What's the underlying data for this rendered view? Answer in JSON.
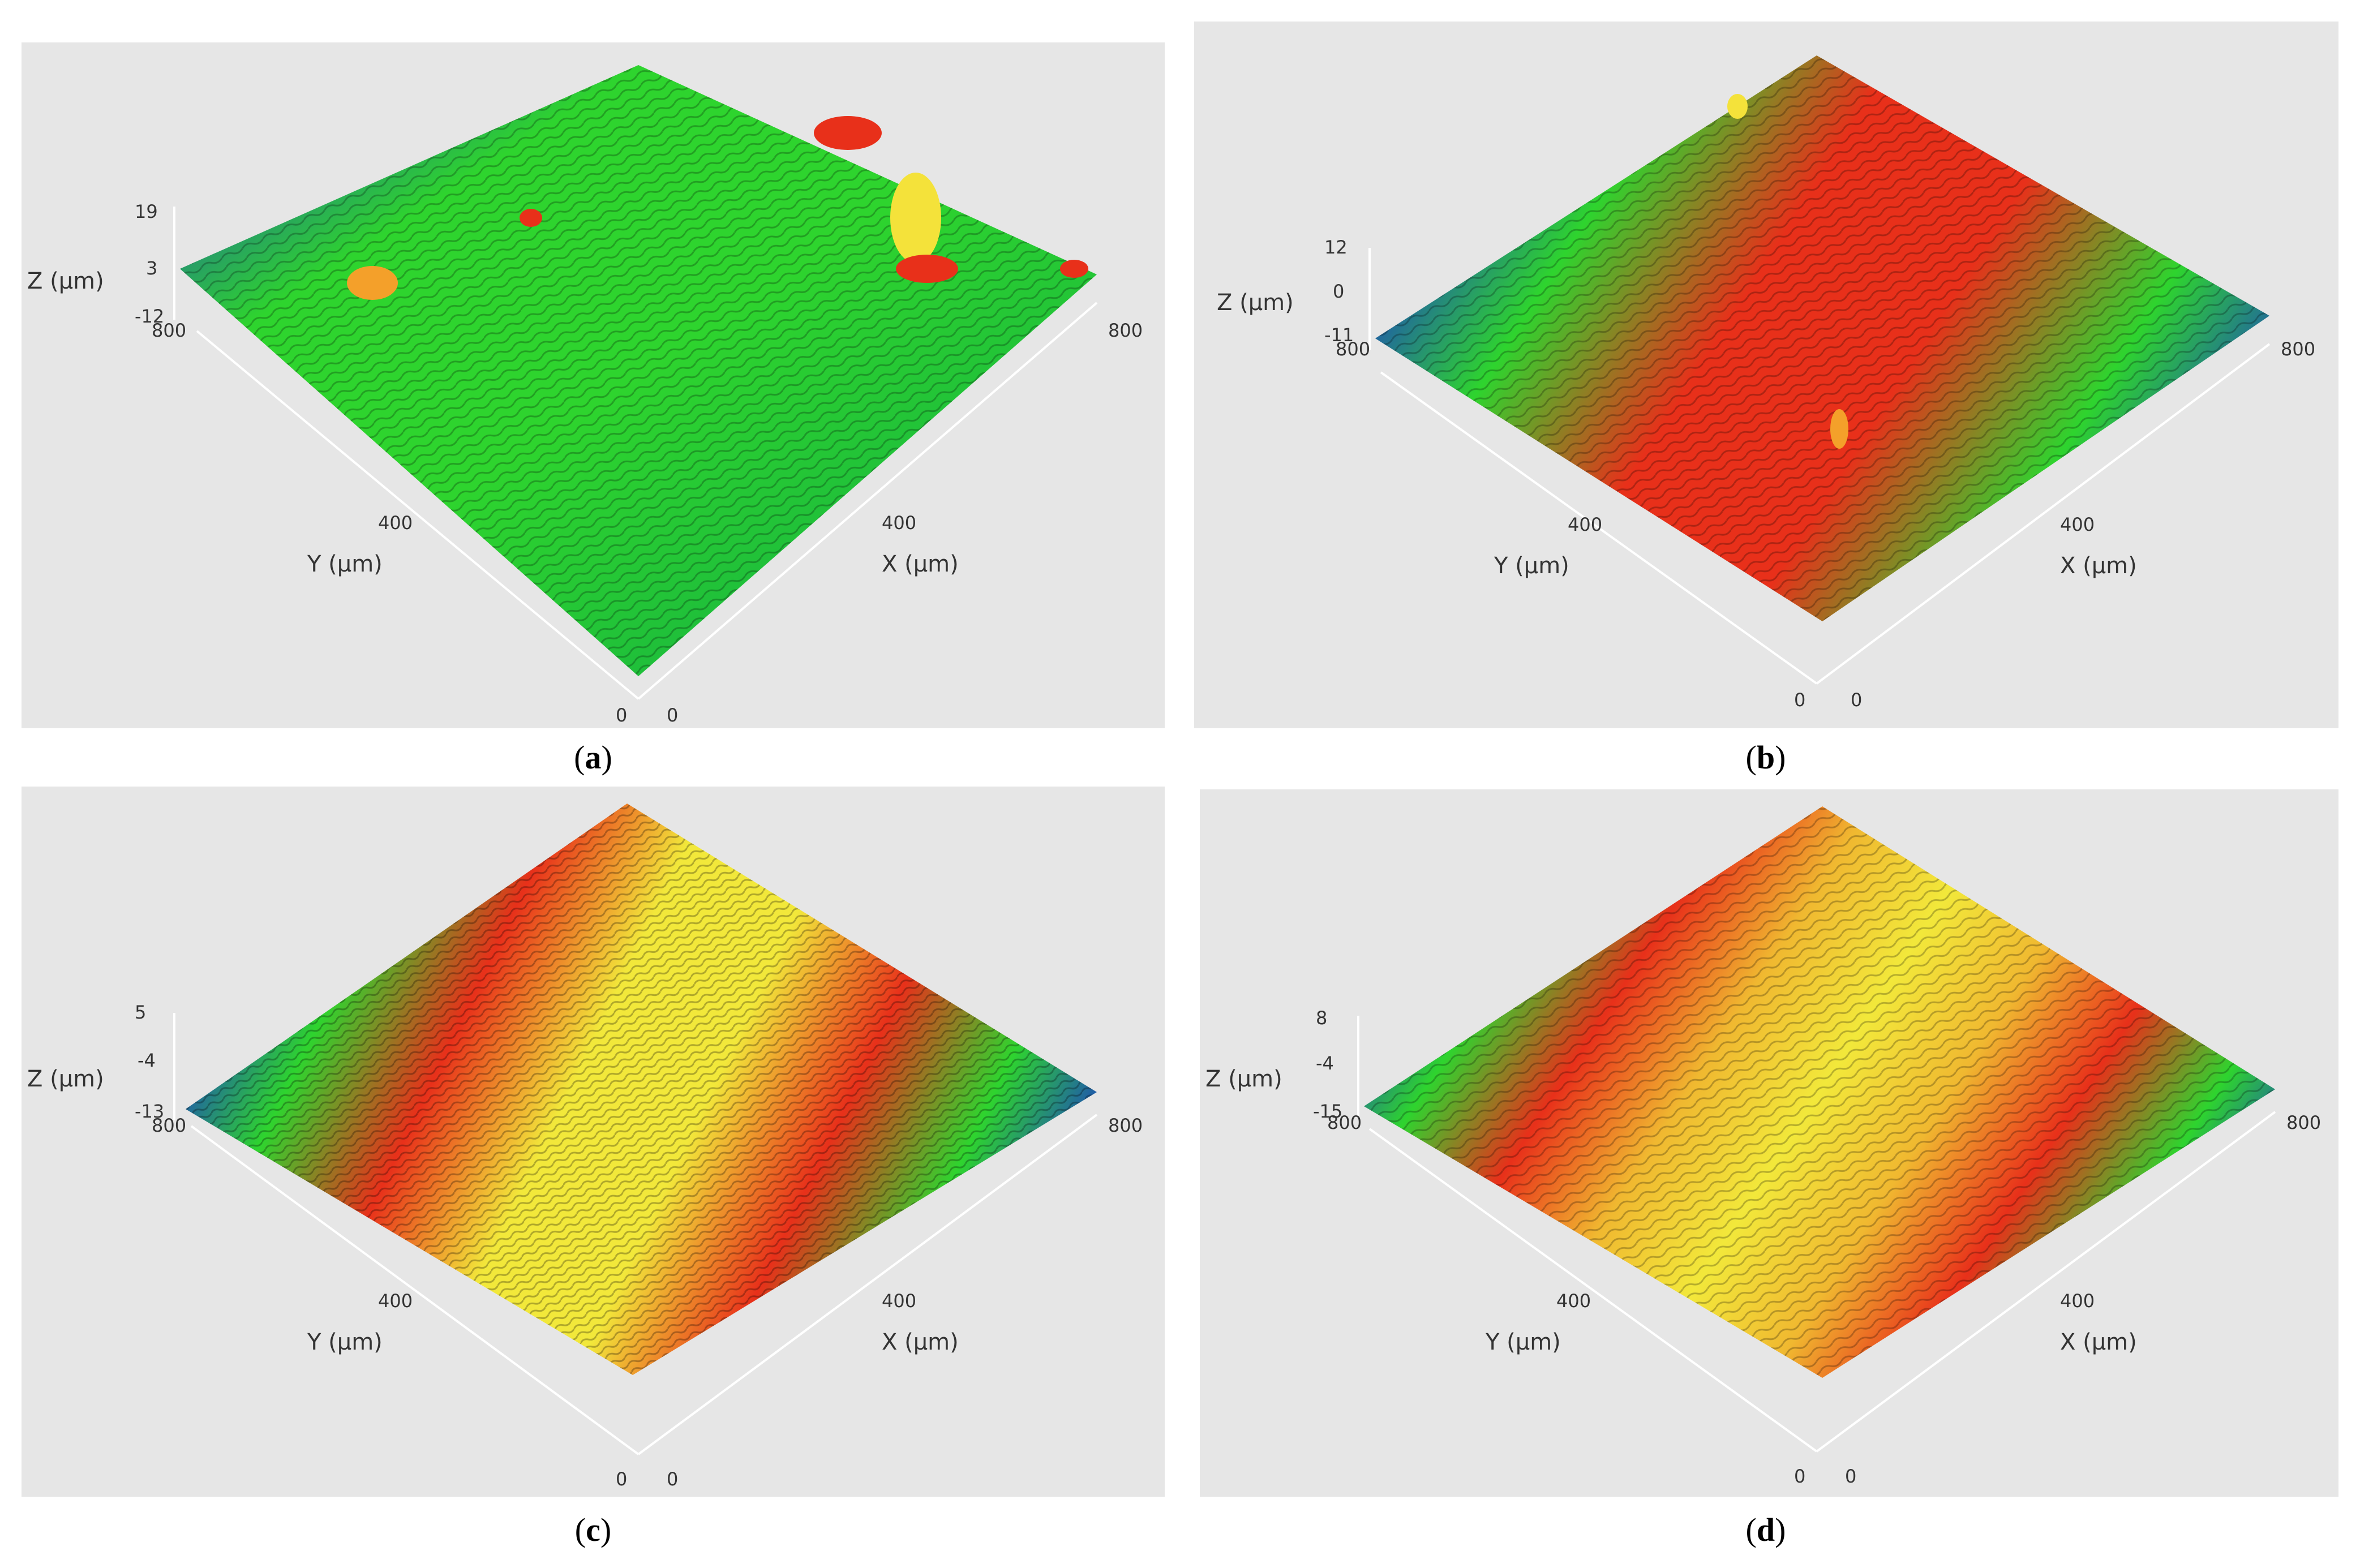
{
  "panels": [
    {
      "id": "a",
      "caption": "a",
      "z_ticks": [
        "19",
        "3",
        "-12"
      ],
      "z_label": "Z (μm)",
      "y_label": "Y (μm)",
      "x_label": "X (μm)",
      "y_ticks": [
        "800",
        "400",
        "0"
      ],
      "x_ticks": [
        "0",
        "400",
        "800"
      ],
      "colors": [
        "#1a2fd6",
        "#2ed42e",
        "#2ed42e",
        "#1fbf3a",
        "#1a2fd6"
      ]
    },
    {
      "id": "b",
      "caption": "b",
      "z_ticks": [
        "12",
        "0",
        "-11"
      ],
      "z_label": "Z (μm)",
      "y_label": "Y (μm)",
      "x_label": "X (μm)",
      "y_ticks": [
        "800",
        "400",
        "0"
      ],
      "x_ticks": [
        "0",
        "400",
        "800"
      ],
      "colors": [
        "#1a2fd6",
        "#2ed42e",
        "#e8301a",
        "#e8301a",
        "#2ed42e",
        "#1a2fd6"
      ]
    },
    {
      "id": "c",
      "caption": "c",
      "z_ticks": [
        "5",
        "-4",
        "-13"
      ],
      "z_label": "Z (μm)",
      "y_label": "Y (μm)",
      "x_label": "X (μm)",
      "y_ticks": [
        "800",
        "400",
        "0"
      ],
      "x_ticks": [
        "0",
        "400",
        "800"
      ],
      "colors": [
        "#1a2fd6",
        "#2ed42e",
        "#e8301a",
        "#f2e83a",
        "#f2e83a",
        "#e8301a",
        "#2ed42e",
        "#1a2fd6"
      ]
    },
    {
      "id": "d",
      "caption": "d",
      "z_ticks": [
        "8",
        "-4",
        "-15"
      ],
      "z_label": "Z (μm)",
      "y_label": "Y (μm)",
      "x_label": "X (μm)",
      "y_ticks": [
        "800",
        "400",
        "0"
      ],
      "x_ticks": [
        "0",
        "400",
        "800"
      ],
      "colors": [
        "#1a2fd6",
        "#2ed42e",
        "#e8301a",
        "#f0b830",
        "#f2e83a",
        "#f0b830",
        "#e8301a",
        "#2ed42e",
        "#1a2fd6"
      ]
    }
  ]
}
